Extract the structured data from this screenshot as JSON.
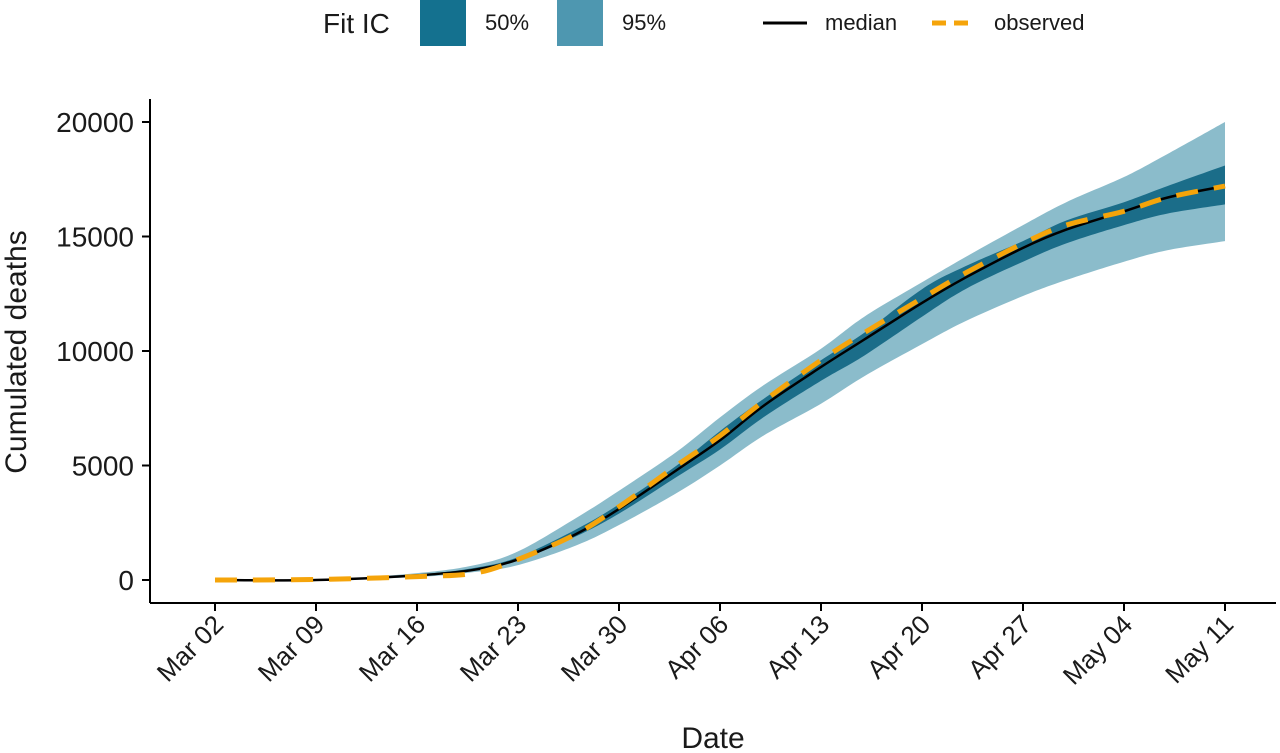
{
  "chart_data": {
    "type": "area",
    "title": "",
    "xlabel": "Date",
    "ylabel": "Cumulated deaths",
    "ylim": [
      0,
      20000
    ],
    "yticks": [
      0,
      5000,
      10000,
      15000,
      20000
    ],
    "yticklabels": [
      "0",
      "5000",
      "10000",
      "15000",
      "20000"
    ],
    "xlim": [
      "2020-03-02",
      "2020-05-11"
    ],
    "xticks": [
      "2020-03-02",
      "2020-03-09",
      "2020-03-16",
      "2020-03-23",
      "2020-03-30",
      "2020-04-06",
      "2020-04-13",
      "2020-04-20",
      "2020-04-27",
      "2020-05-04",
      "2020-05-11"
    ],
    "xticklabels": [
      "Mar 02",
      "Mar 09",
      "Mar 16",
      "Mar 23",
      "Mar 30",
      "Apr 06",
      "Apr 13",
      "Apr 20",
      "Apr 27",
      "May 04",
      "May 11"
    ],
    "grid": false,
    "legend": {
      "title": "Fit IC",
      "placement": "top",
      "entries": [
        {
          "label": "50%",
          "kind": "ribbon",
          "color": "#14718f"
        },
        {
          "label": "95%",
          "kind": "ribbon",
          "color": "#4e97b0"
        },
        {
          "label": "median",
          "kind": "line",
          "color": "#000000"
        },
        {
          "label": "observed",
          "kind": "dashed-line",
          "color": "#f5a40a"
        }
      ]
    },
    "x": [
      "2020-03-02",
      "2020-03-09",
      "2020-03-16",
      "2020-03-20",
      "2020-03-23",
      "2020-03-27",
      "2020-03-30",
      "2020-04-03",
      "2020-04-06",
      "2020-04-09",
      "2020-04-13",
      "2020-04-16",
      "2020-04-20",
      "2020-04-23",
      "2020-04-27",
      "2020-04-30",
      "2020-05-04",
      "2020-05-07",
      "2020-05-11"
    ],
    "series": [
      {
        "name": "95%",
        "kind": "ribbon",
        "color": "#8bbccb",
        "lower": [
          0,
          0,
          130,
          350,
          650,
          1500,
          2400,
          3800,
          5000,
          6300,
          7700,
          8900,
          10300,
          11300,
          12400,
          13100,
          13900,
          14400,
          14800
        ],
        "upper": [
          0,
          0,
          300,
          650,
          1250,
          2700,
          3900,
          5600,
          7100,
          8500,
          10100,
          11500,
          13000,
          14100,
          15500,
          16500,
          17600,
          18600,
          20000
        ]
      },
      {
        "name": "50%",
        "kind": "ribbon",
        "color": "#1b6d89",
        "lower": [
          0,
          0,
          190,
          430,
          850,
          1900,
          2900,
          4500,
          5700,
          7100,
          8700,
          9800,
          11500,
          12700,
          13900,
          14700,
          15500,
          16000,
          16400
        ],
        "upper": [
          0,
          0,
          240,
          530,
          1000,
          2200,
          3300,
          5000,
          6500,
          7900,
          9600,
          10800,
          12700,
          13700,
          14800,
          15700,
          16500,
          17200,
          18100
        ]
      },
      {
        "name": "median",
        "kind": "line",
        "color": "#000000",
        "values": [
          0,
          0,
          200,
          450,
          900,
          2000,
          3100,
          4800,
          6100,
          7600,
          9300,
          10500,
          12100,
          13200,
          14500,
          15300,
          16100,
          16700,
          17200
        ]
      },
      {
        "name": "observed",
        "kind": "dashed-line",
        "color": "#f5a40a",
        "values": [
          0,
          20,
          150,
          300,
          900,
          2000,
          3200,
          5000,
          6300,
          7800,
          9600,
          10800,
          12300,
          13400,
          14700,
          15500,
          16100,
          16700,
          17200
        ]
      }
    ]
  }
}
